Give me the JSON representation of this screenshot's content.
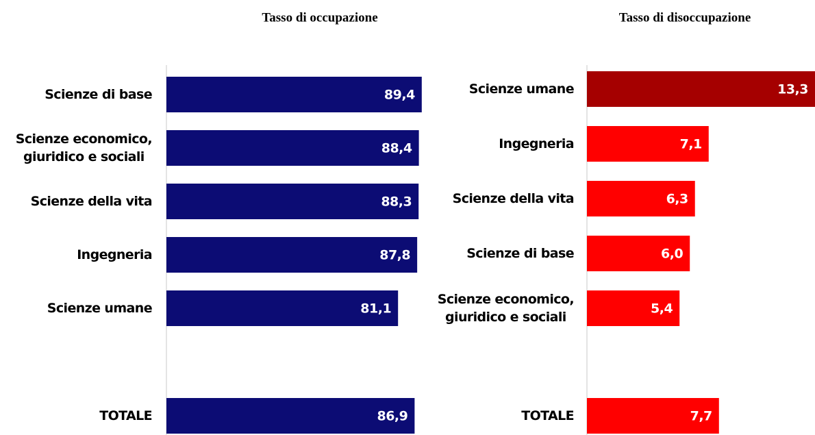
{
  "chart_data": [
    {
      "type": "bar",
      "orientation": "horizontal",
      "title": "Tasso di occupazione",
      "categories": [
        "Scienze di base",
        "Scienze economico,\ngiuridico e sociali",
        "Scienze della vita",
        "Ingegneria",
        "Scienze umane",
        "TOTALE"
      ],
      "values": [
        89.4,
        88.4,
        88.3,
        87.8,
        81.1,
        86.9
      ],
      "value_labels": [
        "89,4",
        "88,4",
        "88,3",
        "87,8",
        "81,1",
        "86,9"
      ],
      "colors": [
        "#0c0c74",
        "#0c0c74",
        "#0c0c74",
        "#0c0c74",
        "#0c0c74",
        "#0c0c74"
      ],
      "xlim": [
        0,
        100
      ]
    },
    {
      "type": "bar",
      "orientation": "horizontal",
      "title": "Tasso di disoccupazione",
      "categories": [
        "Scienze umane",
        "Ingegneria",
        "Scienze della vita",
        "Scienze di base",
        "Scienze economico,\ngiuridico e sociali",
        "TOTALE"
      ],
      "values": [
        13.3,
        7.1,
        6.3,
        6.0,
        5.4,
        7.7
      ],
      "value_labels": [
        "13,3",
        "7,1",
        "6,3",
        "6,0",
        "5,4",
        "7,7"
      ],
      "colors": [
        "#a50000",
        "#ff0000",
        "#ff0000",
        "#ff0000",
        "#ff0000",
        "#ff0000"
      ],
      "xlim": [
        0,
        13.3
      ]
    }
  ]
}
